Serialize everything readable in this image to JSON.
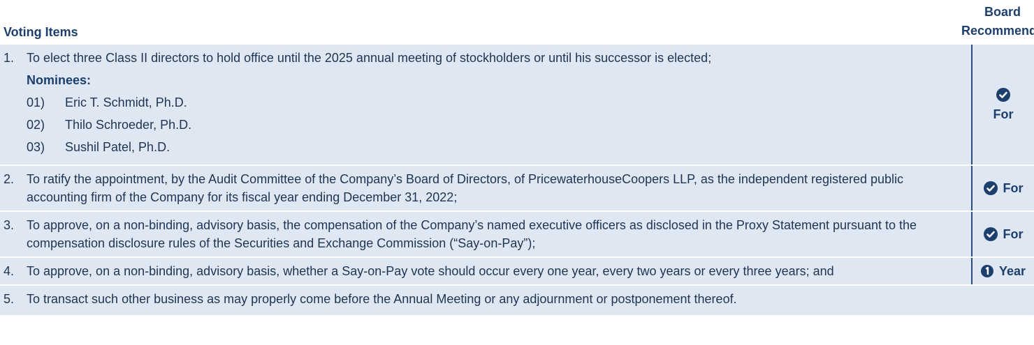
{
  "header": {
    "voting_items": "Voting Items",
    "board_recommends": "Board Recommends"
  },
  "items": [
    {
      "number": "1.",
      "text": "To elect three Class II directors to hold office until the 2025 annual meeting of stockholders or until his successor is elected;",
      "nominees_label": "Nominees:",
      "nominees": [
        {
          "number": "01)",
          "name": "Eric T. Schmidt, Ph.D."
        },
        {
          "number": "02)",
          "name": "Thilo Schroeder, Ph.D."
        },
        {
          "number": "03)",
          "name": "Sushil Patel, Ph.D."
        }
      ],
      "recommendation": "For"
    },
    {
      "number": "2.",
      "text": "To ratify the appointment, by the Audit Committee of the Company’s Board of Directors, of PricewaterhouseCoopers LLP, as the independent registered public accounting firm of the Company for its fiscal year ending December 31, 2022;",
      "recommendation": "For"
    },
    {
      "number": "3.",
      "text": "To approve, on a non-binding, advisory basis, the compensation of the Company’s named executive officers as disclosed in the Proxy Statement pursuant to the compensation disclosure rules of the Securities and Exchange Commission (“Say-on-Pay”);",
      "recommendation": "For"
    },
    {
      "number": "4.",
      "text": "To approve, on a non-binding, advisory basis, whether a Say-on-Pay vote should occur every one year, every two years or every three years; and",
      "recommendation": "Year"
    },
    {
      "number": "5.",
      "text": "To transact such other business as may properly come before the Annual Meeting or any adjournment or postponement thereof."
    }
  ]
}
